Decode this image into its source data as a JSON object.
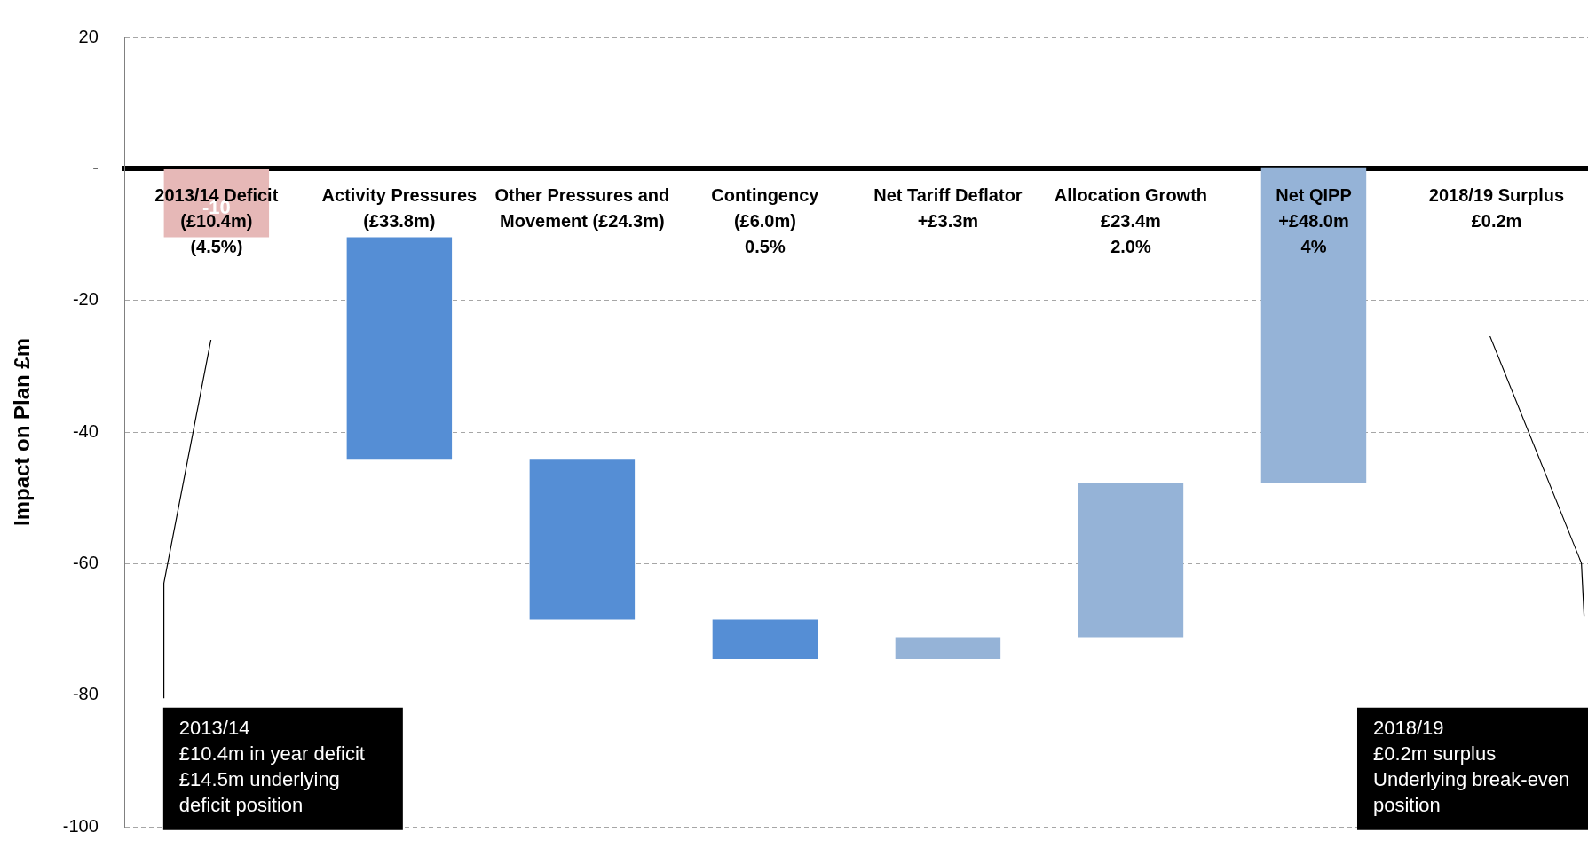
{
  "chart_data": {
    "type": "bar",
    "ylabel": "Impact on Plan £m",
    "categories": [
      "2013/14 Deficit\n(£10.4m)\n(4.5%)",
      "Activity Pressures\n(£33.8m)",
      "Other Pressures and\nMovement (£24.3m)",
      "Contingency\n(£6.0m)\n0.5%",
      "Net Tariff Deflator\n+£3.3m",
      "Allocation Growth\n£23.4m\n2.0%",
      "Net QIPP\n+£48.0m\n4%",
      "2018/19 Surplus\n£0.2m"
    ],
    "values": [
      -10.4,
      -33.8,
      -24.3,
      -6.0,
      3.3,
      23.4,
      48.0,
      null
    ],
    "base": [
      0,
      -10.4,
      -44.2,
      -68.5,
      -74.5,
      -71.2,
      -47.8,
      null
    ],
    "colors": [
      "#e6b8b7",
      "#558ed5",
      "#558ed5",
      "#558ed5",
      "#95b3d7",
      "#95b3d7",
      "#95b3d7",
      "#95b3d7"
    ],
    "value_labels": [
      "-10",
      null,
      null,
      null,
      null,
      null,
      null,
      null
    ],
    "ylim": [
      -100,
      20
    ],
    "yticks": [
      20,
      {
        "value": 0,
        "label": "-"
      },
      -20,
      -40,
      -60,
      -80,
      -100
    ],
    "grid": "y",
    "legend": false,
    "annotations": [
      "2013/14\n£10.4m in year deficit\n£14.5m underlying\ndeficit position",
      "2018/19\n£0.2m surplus\nUnderlying break-even\nposition"
    ]
  }
}
